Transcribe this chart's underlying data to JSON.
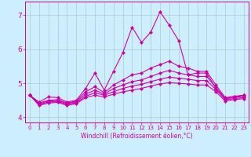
{
  "xlabel": "Windchill (Refroidissement éolien,°C)",
  "bg_color": "#cceeff",
  "grid_color": "#aacccc",
  "line_color": "#cc00aa",
  "xlim": [
    -0.5,
    23.5
  ],
  "ylim": [
    3.85,
    7.4
  ],
  "yticks": [
    4,
    5,
    6,
    7
  ],
  "xticks": [
    0,
    1,
    2,
    3,
    4,
    5,
    6,
    7,
    8,
    9,
    10,
    11,
    12,
    13,
    14,
    15,
    16,
    17,
    18,
    19,
    20,
    21,
    22,
    23
  ],
  "lines": [
    [
      4.65,
      4.45,
      4.6,
      4.58,
      4.45,
      4.5,
      4.85,
      5.3,
      4.8,
      5.35,
      5.9,
      6.65,
      6.2,
      6.5,
      7.1,
      6.7,
      6.25,
      5.25,
      5.3,
      5.3,
      4.85,
      4.55,
      4.6,
      4.65
    ],
    [
      4.65,
      4.42,
      4.5,
      4.52,
      4.42,
      4.48,
      4.75,
      4.9,
      4.72,
      4.95,
      5.1,
      5.25,
      5.3,
      5.45,
      5.55,
      5.65,
      5.5,
      5.45,
      5.35,
      5.35,
      4.95,
      4.58,
      4.62,
      4.65
    ],
    [
      4.65,
      4.4,
      4.48,
      4.5,
      4.4,
      4.46,
      4.68,
      4.8,
      4.68,
      4.85,
      4.95,
      5.05,
      5.1,
      5.2,
      5.3,
      5.38,
      5.3,
      5.25,
      5.2,
      5.2,
      4.88,
      4.55,
      4.58,
      4.62
    ],
    [
      4.65,
      4.38,
      4.45,
      4.47,
      4.38,
      4.43,
      4.62,
      4.72,
      4.65,
      4.75,
      4.85,
      4.92,
      4.97,
      5.05,
      5.12,
      5.18,
      5.15,
      5.12,
      5.08,
      5.08,
      4.82,
      4.52,
      4.55,
      4.58
    ],
    [
      4.65,
      4.35,
      4.42,
      4.44,
      4.35,
      4.4,
      4.58,
      4.65,
      4.6,
      4.68,
      4.75,
      4.8,
      4.85,
      4.92,
      4.98,
      5.02,
      5.0,
      4.98,
      4.95,
      4.95,
      4.75,
      4.48,
      4.52,
      4.55
    ]
  ],
  "xlabel_fontsize": 5.5,
  "ytick_fontsize": 6.5,
  "xtick_fontsize": 5.0
}
